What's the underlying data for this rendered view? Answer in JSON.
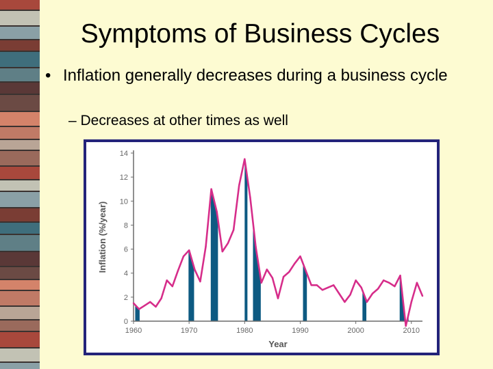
{
  "slide": {
    "title": "Symptoms of Business Cycles",
    "bullet_1": "Inflation generally decreases during a business cycle",
    "bullet_1_marker": "•",
    "bullet_2": "– Decreases at other times as well"
  },
  "colors": {
    "background": "#fdfbd2",
    "frame": "#23237a",
    "line": "#d62d8a",
    "recession_fill": "#0d5a82",
    "axis": "#6a6a6a"
  },
  "chart_data": {
    "type": "line",
    "xlabel": "Year",
    "ylabel": "Inflation (%/year)",
    "xlim": [
      1960,
      2012
    ],
    "ylim": [
      0,
      14
    ],
    "x_ticks": [
      1960,
      1970,
      1980,
      1990,
      2000,
      2010
    ],
    "x_tick_labels": [
      "1960",
      "1970",
      "1980",
      "1990",
      "2000",
      "2010"
    ],
    "y_ticks": [
      0,
      2,
      4,
      6,
      8,
      10,
      12,
      14
    ],
    "y_tick_labels": [
      "0",
      "2",
      "4",
      "6",
      "8",
      "10",
      "12",
      "14"
    ],
    "x": [
      1960,
      1961,
      1962,
      1963,
      1964,
      1965,
      1966,
      1967,
      1968,
      1969,
      1970,
      1971,
      1972,
      1973,
      1974,
      1975,
      1976,
      1977,
      1978,
      1979,
      1980,
      1981,
      1982,
      1983,
      1984,
      1985,
      1986,
      1987,
      1988,
      1989,
      1990,
      1991,
      1992,
      1993,
      1994,
      1995,
      1996,
      1997,
      1998,
      1999,
      2000,
      2001,
      2002,
      2003,
      2004,
      2005,
      2006,
      2007,
      2008,
      2009,
      2010,
      2011,
      2012
    ],
    "values": [
      1.5,
      1.0,
      1.3,
      1.6,
      1.2,
      1.9,
      3.4,
      2.9,
      4.2,
      5.4,
      5.9,
      4.3,
      3.3,
      6.2,
      11.0,
      9.1,
      5.8,
      6.5,
      7.6,
      11.3,
      13.5,
      10.3,
      6.2,
      3.2,
      4.3,
      3.6,
      1.9,
      3.7,
      4.1,
      4.8,
      5.4,
      4.2,
      3.0,
      3.0,
      2.6,
      2.8,
      3.0,
      2.3,
      1.6,
      2.2,
      3.4,
      2.8,
      1.6,
      2.3,
      2.7,
      3.4,
      3.2,
      2.9,
      3.8,
      -0.4,
      1.6,
      3.2,
      2.1
    ],
    "recessions": [
      [
        1960.3,
        1961.1
      ],
      [
        1969.9,
        1970.9
      ],
      [
        1973.9,
        1975.2
      ],
      [
        1980.0,
        1980.5
      ],
      [
        1981.5,
        1982.9
      ],
      [
        1990.5,
        1991.2
      ],
      [
        2001.2,
        2001.9
      ],
      [
        2007.9,
        2009.5
      ]
    ]
  }
}
